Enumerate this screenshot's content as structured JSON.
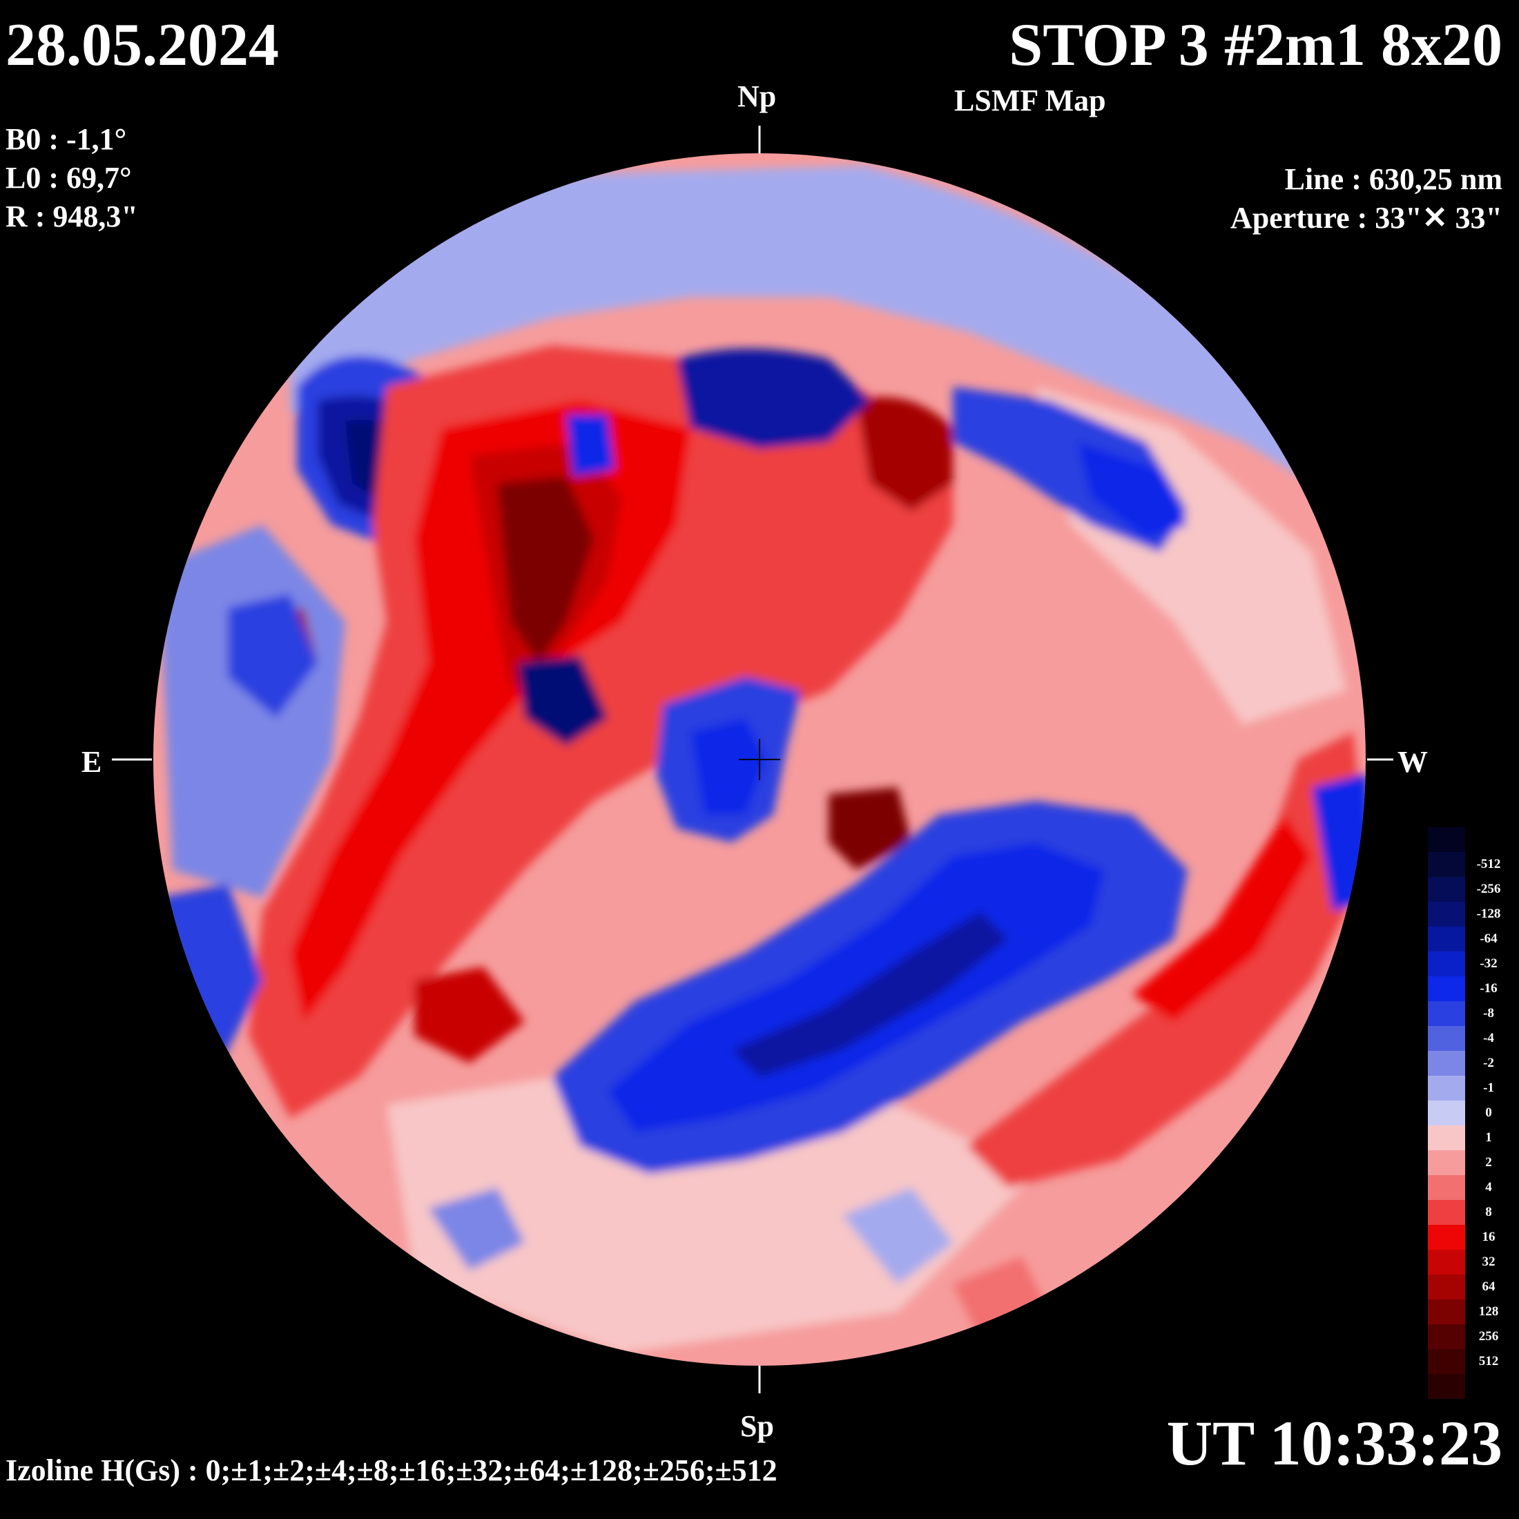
{
  "header": {
    "date": "28.05.2024",
    "title": "STOP 3 #2m1 8x20",
    "subtitle": "LSMF  Map"
  },
  "params": {
    "b0": "B0 : -1,1°",
    "l0": "L0 : 69,7°",
    "r": "R  : 948,3\""
  },
  "instrument": {
    "line": "Line :  630,25 nm",
    "aperture": "Aperture : 33\"✕ 33\""
  },
  "directions": {
    "north": "Np",
    "south": "Sp",
    "east": "E",
    "west": "W"
  },
  "time": "UT 10:33:23",
  "izoline": "Izoline H(Gs) : 0;±1;±2;±4;±8;±16;±32;±64;±128;±256;±512",
  "colorbar": [
    {
      "label": "",
      "color": "#020320"
    },
    {
      "label": "-512",
      "color": "#040838"
    },
    {
      "label": "-256",
      "color": "#050c58"
    },
    {
      "label": "-128",
      "color": "#061075"
    },
    {
      "label": "-64",
      "color": "#0718a0"
    },
    {
      "label": "-32",
      "color": "#0a20c8"
    },
    {
      "label": "-16",
      "color": "#0d28e8"
    },
    {
      "label": "-8",
      "color": "#2a40e0"
    },
    {
      "label": "-4",
      "color": "#5062e0"
    },
    {
      "label": "-2",
      "color": "#7c86e6"
    },
    {
      "label": "-1",
      "color": "#a4aaee"
    },
    {
      "label": "0",
      "color": "#c8ccf4"
    },
    {
      "label": "1",
      "color": "#f8c6c6"
    },
    {
      "label": "2",
      "color": "#f69c9c"
    },
    {
      "label": "4",
      "color": "#f27070"
    },
    {
      "label": "8",
      "color": "#ee4040"
    },
    {
      "label": "16",
      "color": "#ee0606"
    },
    {
      "label": "32",
      "color": "#c80404"
    },
    {
      "label": "64",
      "color": "#a50202"
    },
    {
      "label": "128",
      "color": "#7c0202"
    },
    {
      "label": "256",
      "color": "#560101"
    },
    {
      "label": "512",
      "color": "#400000"
    },
    {
      "label": "",
      "color": "#2a0000"
    }
  ]
}
